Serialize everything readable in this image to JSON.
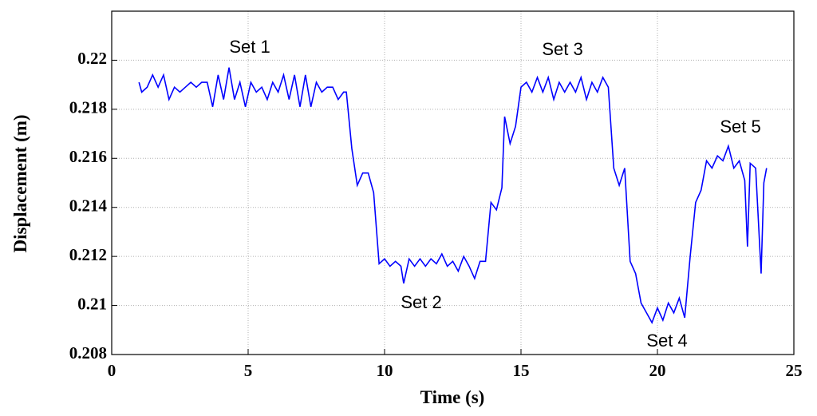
{
  "chart_data": {
    "type": "line",
    "xlabel": "Time (s)",
    "ylabel": "Displacement (m)",
    "annotations": [
      "Set 1",
      "Set 2",
      "Set 3",
      "Set 4",
      "Set 5"
    ],
    "xlim": [
      0,
      25
    ],
    "xticks": [
      0,
      5,
      10,
      15,
      20,
      25
    ],
    "ylim": [
      0.208,
      0.222
    ],
    "yticks": [
      0.208,
      0.21,
      0.212,
      0.214,
      0.216,
      0.218,
      0.22
    ],
    "grid": true,
    "series": [
      {
        "color": "#0000ff",
        "x": [
          1.0,
          1.1,
          1.3,
          1.5,
          1.7,
          1.9,
          2.1,
          2.3,
          2.5,
          2.7,
          2.9,
          3.1,
          3.3,
          3.5,
          3.7,
          3.9,
          4.1,
          4.3,
          4.5,
          4.7,
          4.9,
          5.1,
          5.3,
          5.5,
          5.7,
          5.9,
          6.1,
          6.3,
          6.5,
          6.7,
          6.9,
          7.1,
          7.3,
          7.5,
          7.7,
          7.9,
          8.1,
          8.3,
          8.5,
          8.6,
          8.8,
          9.0,
          9.2,
          9.4,
          9.6,
          9.8,
          10.0,
          10.2,
          10.4,
          10.6,
          10.7,
          10.9,
          11.1,
          11.3,
          11.5,
          11.7,
          11.9,
          12.1,
          12.3,
          12.5,
          12.7,
          12.9,
          13.1,
          13.3,
          13.5,
          13.7,
          13.9,
          14.1,
          14.3,
          14.4,
          14.6,
          14.8,
          15.0,
          15.2,
          15.4,
          15.6,
          15.8,
          16.0,
          16.2,
          16.4,
          16.6,
          16.8,
          17.0,
          17.2,
          17.4,
          17.6,
          17.8,
          18.0,
          18.2,
          18.4,
          18.6,
          18.8,
          19.0,
          19.2,
          19.4,
          19.6,
          19.8,
          20.0,
          20.2,
          20.4,
          20.6,
          20.8,
          21.0,
          21.2,
          21.4,
          21.6,
          21.8,
          22.0,
          22.2,
          22.4,
          22.6,
          22.8,
          23.0,
          23.2,
          23.3,
          23.4,
          23.6,
          23.8,
          23.9,
          24.0
        ],
        "values": [
          0.2191,
          0.2187,
          0.2189,
          0.2194,
          0.2189,
          0.2194,
          0.2184,
          0.2189,
          0.2187,
          0.2189,
          0.2191,
          0.2189,
          0.2191,
          0.2191,
          0.2181,
          0.2194,
          0.2184,
          0.2197,
          0.2184,
          0.2191,
          0.2181,
          0.2191,
          0.2187,
          0.2189,
          0.2184,
          0.2191,
          0.2187,
          0.2194,
          0.2184,
          0.2194,
          0.2181,
          0.2194,
          0.2181,
          0.2191,
          0.2187,
          0.2189,
          0.2189,
          0.2184,
          0.2187,
          0.2187,
          0.2164,
          0.2149,
          0.2154,
          0.2154,
          0.2146,
          0.2117,
          0.2119,
          0.2116,
          0.2118,
          0.2116,
          0.2109,
          0.2119,
          0.2116,
          0.2119,
          0.2116,
          0.2119,
          0.2117,
          0.2121,
          0.2116,
          0.2118,
          0.2114,
          0.212,
          0.2116,
          0.2111,
          0.2118,
          0.2118,
          0.2142,
          0.2139,
          0.2148,
          0.2177,
          0.2166,
          0.2173,
          0.2189,
          0.2191,
          0.2187,
          0.2193,
          0.2187,
          0.2193,
          0.2184,
          0.2191,
          0.2187,
          0.2191,
          0.2187,
          0.2193,
          0.2184,
          0.2191,
          0.2187,
          0.2193,
          0.2189,
          0.2156,
          0.2149,
          0.2156,
          0.2118,
          0.2113,
          0.2101,
          0.2097,
          0.2093,
          0.2099,
          0.2094,
          0.2101,
          0.2097,
          0.2103,
          0.2095,
          0.212,
          0.2142,
          0.2147,
          0.2159,
          0.2156,
          0.2161,
          0.2159,
          0.2165,
          0.2156,
          0.2159,
          0.2151,
          0.2124,
          0.2158,
          0.2156,
          0.2113,
          0.215,
          0.2156
        ]
      }
    ]
  }
}
